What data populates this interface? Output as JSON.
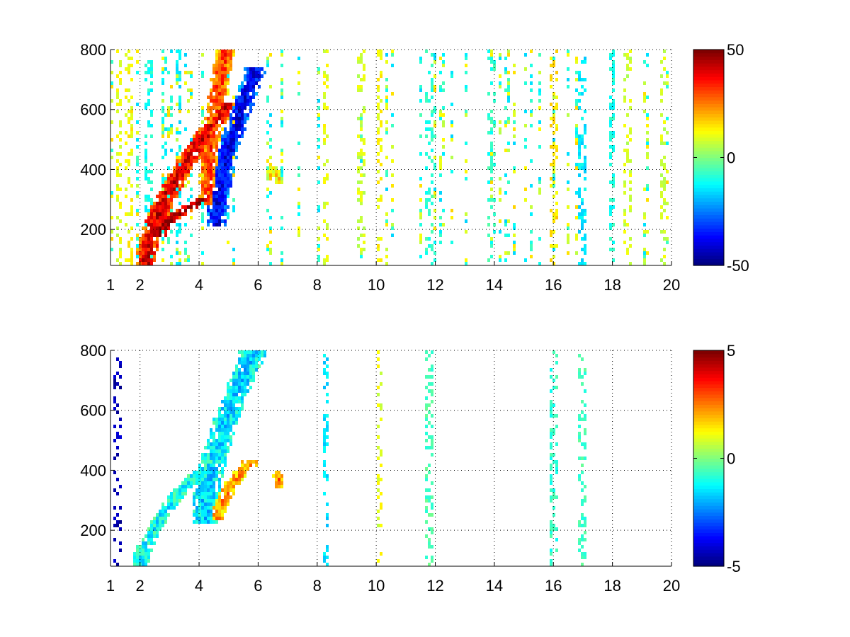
{
  "chart_data": [
    {
      "type": "heatmap",
      "title": "",
      "xlabel": "",
      "ylabel": "",
      "xlim": [
        1,
        20
      ],
      "ylim": [
        80,
        800
      ],
      "x_ticks": [
        1,
        2,
        4,
        6,
        8,
        10,
        12,
        14,
        16,
        18,
        20
      ],
      "y_ticks": [
        200,
        400,
        600,
        800
      ],
      "grid": true,
      "colormap": "jet",
      "clim": [
        -50,
        50
      ],
      "colorbar_ticks": [
        -50,
        0,
        50
      ],
      "density": 0.55,
      "features": [
        {
          "kind": "ridge",
          "x_start": 2.2,
          "x_end": 4.9,
          "y_start": 90,
          "y_end": 600,
          "value": 40,
          "width": 0.45
        },
        {
          "kind": "ridge",
          "x_start": 2.6,
          "x_end": 4.2,
          "y_start": 180,
          "y_end": 300,
          "value": 48,
          "width": 0.35
        },
        {
          "kind": "ridge",
          "x_start": 4.3,
          "x_end": 4.9,
          "y_start": 300,
          "y_end": 800,
          "value": 30,
          "width": 0.4
        },
        {
          "kind": "ridge",
          "x_start": 4.6,
          "x_end": 5.9,
          "y_start": 230,
          "y_end": 720,
          "value": -38,
          "width": 0.45
        },
        {
          "kind": "blob",
          "x": 6.6,
          "y": 380,
          "value": 15,
          "width": 0.4
        }
      ],
      "noise_columns": [
        {
          "x": 1.3,
          "value": 10
        },
        {
          "x": 1.6,
          "value": 12
        },
        {
          "x": 2.3,
          "value": -10
        },
        {
          "x": 2.8,
          "value": -12
        },
        {
          "x": 3.3,
          "value": -14
        },
        {
          "x": 8.3,
          "value": 10
        },
        {
          "x": 9.5,
          "value": 8
        },
        {
          "x": 10.1,
          "value": 12
        },
        {
          "x": 11.8,
          "value": -8
        },
        {
          "x": 13.9,
          "value": -8
        },
        {
          "x": 16.0,
          "value": 15
        },
        {
          "x": 17.0,
          "value": -14
        },
        {
          "x": 18.0,
          "value": -10
        },
        {
          "x": 18.5,
          "value": 8
        },
        {
          "x": 19.7,
          "value": 8
        }
      ]
    },
    {
      "type": "heatmap",
      "title": "",
      "xlabel": "",
      "ylabel": "",
      "xlim": [
        1,
        20
      ],
      "ylim": [
        80,
        800
      ],
      "x_ticks": [
        1,
        2,
        4,
        6,
        8,
        10,
        12,
        14,
        16,
        18,
        20
      ],
      "y_ticks": [
        200,
        400,
        600,
        800
      ],
      "grid": true,
      "colormap": "jet",
      "clim": [
        -5,
        5
      ],
      "colorbar_ticks": [
        -5,
        0,
        5
      ],
      "density": 0.0,
      "features": [
        {
          "kind": "ridge",
          "x_start": 2.0,
          "x_end": 4.4,
          "y_start": 80,
          "y_end": 430,
          "value": -1.2,
          "width": 0.35
        },
        {
          "kind": "ridge",
          "x_start": 4.2,
          "x_end": 5.8,
          "y_start": 250,
          "y_end": 780,
          "value": -1.6,
          "width": 0.55
        },
        {
          "kind": "ridge",
          "x_start": 4.6,
          "x_end": 5.7,
          "y_start": 240,
          "y_end": 420,
          "value": 2.2,
          "width": 0.35
        },
        {
          "kind": "blob",
          "x": 6.7,
          "y": 370,
          "value": 2.5,
          "width": 0.25
        }
      ],
      "noise_columns": [
        {
          "x": 1.25,
          "value": -4.5
        },
        {
          "x": 8.3,
          "value": -1.5
        },
        {
          "x": 10.1,
          "value": 1.0
        },
        {
          "x": 11.8,
          "value": -0.5
        },
        {
          "x": 16.0,
          "value": -0.8
        },
        {
          "x": 17.0,
          "value": -0.6
        }
      ]
    }
  ]
}
